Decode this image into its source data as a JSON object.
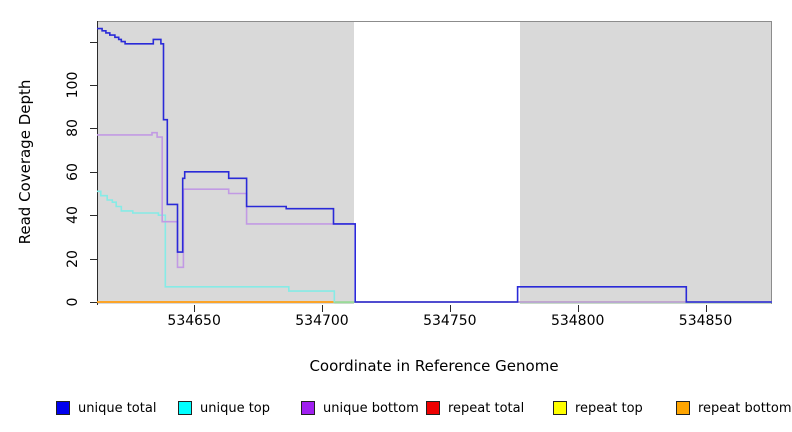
{
  "figure": {
    "xlabel": "Coordinate in Reference Genome",
    "ylabel": "Read Coverage Depth"
  },
  "chart_data": {
    "type": "line",
    "title": "",
    "xlabel": "Coordinate in Reference Genome",
    "ylabel": "Read Coverage Depth",
    "x_range": [
      534612,
      534876
    ],
    "y_range": [
      0,
      130
    ],
    "grid": "off",
    "legend_position": "bottom",
    "x_ticks": [
      {
        "v": 534650,
        "label": "534650"
      },
      {
        "v": 534700,
        "label": "534700"
      },
      {
        "v": 534750,
        "label": "534750"
      },
      {
        "v": 534800,
        "label": "534800"
      },
      {
        "v": 534850,
        "label": "534850"
      }
    ],
    "y_ticks": [
      {
        "v": 0,
        "label": "0"
      },
      {
        "v": 20,
        "label": "20"
      },
      {
        "v": 40,
        "label": "40"
      },
      {
        "v": 60,
        "label": "60"
      },
      {
        "v": 80,
        "label": "80"
      },
      {
        "v": 100,
        "label": "100"
      },
      {
        "v": 120,
        "label": ""
      }
    ],
    "shaded_regions": {
      "color": "#d9d9d9",
      "spans": [
        [
          534612,
          534712.5
        ],
        [
          534777.4,
          534876
        ]
      ]
    },
    "non_repeat_region": [
      534712.5,
      534777.4
    ],
    "series": [
      {
        "name": "unique total",
        "slug": "unique-total",
        "color": "#2a2ad8",
        "legend_color": "#0000ee",
        "knots": [
          [
            534612,
            126
          ],
          [
            534614,
            125
          ],
          [
            534615.5,
            124
          ],
          [
            534617,
            123
          ],
          [
            534619,
            122
          ],
          [
            534620.5,
            121
          ],
          [
            534621.5,
            120
          ],
          [
            534623,
            119
          ],
          [
            534634,
            121
          ],
          [
            534637,
            119
          ],
          [
            534638,
            84
          ],
          [
            534639.5,
            45
          ],
          [
            534643.5,
            23
          ],
          [
            534645.5,
            57
          ],
          [
            534646.3,
            60
          ],
          [
            534663.5,
            57
          ],
          [
            534670.5,
            44
          ],
          [
            534686,
            43
          ],
          [
            534704.5,
            36
          ],
          [
            534713,
            0
          ],
          [
            534776.5,
            7
          ],
          [
            534842.5,
            0
          ]
        ]
      },
      {
        "name": "unique top",
        "slug": "unique-top",
        "color": "#86ebe6",
        "legend_color": "#00ffff",
        "knots": [
          [
            534612,
            51
          ],
          [
            534613.5,
            49
          ],
          [
            534616,
            47
          ],
          [
            534618,
            46
          ],
          [
            534619.5,
            44
          ],
          [
            534621.5,
            42
          ],
          [
            534626,
            41
          ],
          [
            534636,
            40
          ],
          [
            534638.7,
            7
          ],
          [
            534687,
            5
          ],
          [
            534704.8,
            0
          ]
        ]
      },
      {
        "name": "unique bottom",
        "slug": "unique-bottom",
        "color": "#c29ae4",
        "legend_color": "#a020f0",
        "knots": [
          [
            534612,
            77
          ],
          [
            534633.5,
            78
          ],
          [
            534635.5,
            76
          ],
          [
            534637.5,
            37
          ],
          [
            534643.5,
            16
          ],
          [
            534645.8,
            52
          ],
          [
            534663.5,
            50
          ],
          [
            534670.5,
            36
          ],
          [
            534713,
            0
          ]
        ]
      },
      {
        "name": "repeat total",
        "slug": "repeat-total",
        "color": "#ee0000",
        "legend_color": "#ee0000",
        "knots": [
          [
            534612,
            0
          ]
        ]
      },
      {
        "name": "repeat top",
        "slug": "repeat-top",
        "color": "#ffff00",
        "legend_color": "#ffff00",
        "knots": [
          [
            534612,
            0
          ]
        ]
      },
      {
        "name": "repeat bottom",
        "slug": "repeat-bottom",
        "color": "#ff9e24",
        "legend_color": "#ffa500",
        "knots": [
          [
            534612,
            0
          ]
        ]
      }
    ],
    "overlap_segments": {
      "color": "#98dc98",
      "value": 0,
      "spans": [
        [
          534704.8,
          534712.5
        ],
        [
          534777.4,
          534876
        ]
      ]
    },
    "draw_order": [
      "repeat-total",
      "repeat-top",
      "repeat-bottom",
      "unique-top",
      "overlap",
      "unique-bottom",
      "unique-total"
    ]
  },
  "legend": {
    "items": [
      {
        "label": "unique total",
        "color": "#0000ee"
      },
      {
        "label": "unique top",
        "color": "#00ffff"
      },
      {
        "label": "unique bottom",
        "color": "#a020f0"
      },
      {
        "label": "repeat total",
        "color": "#ee0000"
      },
      {
        "label": "repeat top",
        "color": "#ffff00"
      },
      {
        "label": "repeat bottom",
        "color": "#ffa500"
      }
    ]
  }
}
